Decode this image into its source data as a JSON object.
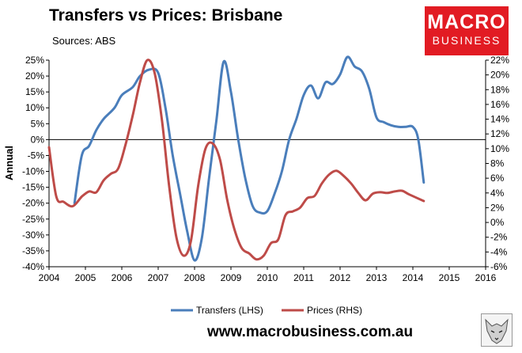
{
  "header": {
    "title": "Transfers vs Prices: Brisbane",
    "source": "Sources: ABS"
  },
  "logo": {
    "line1": "MACRO",
    "line2": "BUSINESS"
  },
  "footer": {
    "url": "www.macrobusiness.com.au"
  },
  "chart_data": {
    "type": "line",
    "ylabel": "Annual",
    "x_ticks": [
      "2004",
      "2005",
      "2006",
      "2007",
      "2008",
      "2009",
      "2010",
      "2011",
      "2012",
      "2013",
      "2014",
      "2015",
      "2016"
    ],
    "y_left": {
      "min": -40,
      "max": 25,
      "step": 5,
      "unit": "%"
    },
    "y_right": {
      "min": -6,
      "max": 22,
      "step": 2,
      "unit": "%"
    },
    "zero_line": true,
    "grid": false,
    "legend_position": "bottom",
    "series": [
      {
        "name": "Transfers (LHS)",
        "axis": "left",
        "color": "#4a7ebb",
        "points": [
          [
            2004.7,
            -20
          ],
          [
            2004.9,
            -5
          ],
          [
            2005.1,
            -2
          ],
          [
            2005.3,
            3
          ],
          [
            2005.5,
            6.5
          ],
          [
            2005.8,
            10
          ],
          [
            2006.0,
            14
          ],
          [
            2006.3,
            16.5
          ],
          [
            2006.5,
            20
          ],
          [
            2006.75,
            22
          ],
          [
            2007.0,
            21
          ],
          [
            2007.2,
            10
          ],
          [
            2007.4,
            -5
          ],
          [
            2007.6,
            -17
          ],
          [
            2007.8,
            -29
          ],
          [
            2008.0,
            -38
          ],
          [
            2008.2,
            -31
          ],
          [
            2008.4,
            -12
          ],
          [
            2008.6,
            6
          ],
          [
            2008.8,
            24.5
          ],
          [
            2009.0,
            15
          ],
          [
            2009.2,
            0
          ],
          [
            2009.4,
            -12.5
          ],
          [
            2009.6,
            -21
          ],
          [
            2009.8,
            -23
          ],
          [
            2010.0,
            -22.5
          ],
          [
            2010.2,
            -17
          ],
          [
            2010.4,
            -10
          ],
          [
            2010.6,
            0
          ],
          [
            2010.8,
            6.5
          ],
          [
            2011.0,
            14
          ],
          [
            2011.2,
            17
          ],
          [
            2011.4,
            13
          ],
          [
            2011.6,
            18
          ],
          [
            2011.8,
            17.5
          ],
          [
            2012.0,
            20.5
          ],
          [
            2012.2,
            26
          ],
          [
            2012.4,
            23
          ],
          [
            2012.6,
            21.5
          ],
          [
            2012.8,
            16
          ],
          [
            2013.0,
            7
          ],
          [
            2013.2,
            5.5
          ],
          [
            2013.4,
            4.5
          ],
          [
            2013.6,
            4
          ],
          [
            2013.8,
            4
          ],
          [
            2014.0,
            4
          ],
          [
            2014.15,
            0
          ],
          [
            2014.3,
            -13.5
          ]
        ]
      },
      {
        "name": "Prices (RHS)",
        "axis": "right",
        "color": "#be4b48",
        "points": [
          [
            2004.0,
            10.2
          ],
          [
            2004.2,
            3.5
          ],
          [
            2004.4,
            2.8
          ],
          [
            2004.65,
            2.2
          ],
          [
            2004.9,
            3.5
          ],
          [
            2005.1,
            4.2
          ],
          [
            2005.3,
            4.1
          ],
          [
            2005.5,
            5.7
          ],
          [
            2005.7,
            6.6
          ],
          [
            2005.9,
            7.3
          ],
          [
            2006.1,
            10.5
          ],
          [
            2006.3,
            14.5
          ],
          [
            2006.5,
            19
          ],
          [
            2006.7,
            22
          ],
          [
            2006.9,
            20.3
          ],
          [
            2007.1,
            14
          ],
          [
            2007.3,
            5
          ],
          [
            2007.5,
            -2
          ],
          [
            2007.7,
            -4.5
          ],
          [
            2007.9,
            -2.5
          ],
          [
            2008.1,
            5
          ],
          [
            2008.3,
            10
          ],
          [
            2008.5,
            10.7
          ],
          [
            2008.7,
            8.5
          ],
          [
            2008.9,
            3
          ],
          [
            2009.1,
            -1
          ],
          [
            2009.3,
            -3.5
          ],
          [
            2009.5,
            -4.2
          ],
          [
            2009.7,
            -5
          ],
          [
            2009.9,
            -4.5
          ],
          [
            2010.1,
            -2.8
          ],
          [
            2010.3,
            -2.3
          ],
          [
            2010.5,
            1
          ],
          [
            2010.7,
            1.5
          ],
          [
            2010.9,
            2
          ],
          [
            2011.1,
            3.3
          ],
          [
            2011.3,
            3.6
          ],
          [
            2011.5,
            5.3
          ],
          [
            2011.7,
            6.5
          ],
          [
            2011.9,
            7
          ],
          [
            2012.1,
            6.3
          ],
          [
            2012.3,
            5.3
          ],
          [
            2012.5,
            4
          ],
          [
            2012.7,
            3
          ],
          [
            2012.9,
            3.9
          ],
          [
            2013.1,
            4.1
          ],
          [
            2013.3,
            4
          ],
          [
            2013.5,
            4.2
          ],
          [
            2013.7,
            4.3
          ],
          [
            2013.9,
            3.8
          ],
          [
            2014.3,
            2.9
          ]
        ]
      }
    ]
  }
}
